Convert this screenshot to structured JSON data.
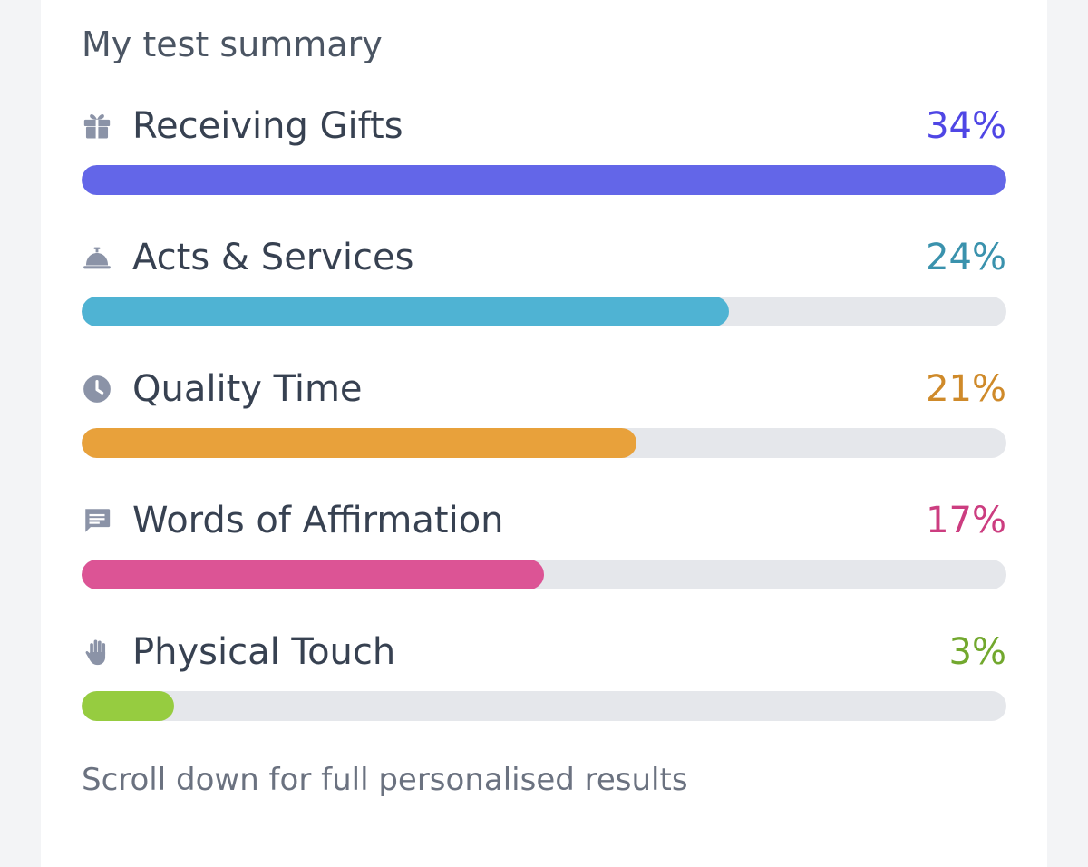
{
  "summary": {
    "title": "My test summary",
    "items": [
      {
        "label": "Receiving Gifts",
        "percent_text": "34%",
        "fill_fraction": 1.0,
        "color": "#6366e8",
        "text_color": "#4f46e5",
        "icon": "gift-icon"
      },
      {
        "label": "Acts & Services",
        "percent_text": "24%",
        "fill_fraction": 0.7,
        "color": "#4fb3d3",
        "text_color": "#3a92ad",
        "icon": "service-bell-icon"
      },
      {
        "label": "Quality Time",
        "percent_text": "21%",
        "fill_fraction": 0.6,
        "color": "#e8a13b",
        "text_color": "#cf8a2a",
        "icon": "clock-icon"
      },
      {
        "label": "Words of Affirmation",
        "percent_text": "17%",
        "fill_fraction": 0.5,
        "color": "#dc5495",
        "text_color": "#cc3d80",
        "icon": "chat-bubble-icon"
      },
      {
        "label": "Physical Touch",
        "percent_text": "3%",
        "fill_fraction": 0.1,
        "color": "#96cc40",
        "text_color": "#72a82e",
        "icon": "hand-icon"
      }
    ],
    "footer_note": "Scroll down for full personalised results"
  }
}
